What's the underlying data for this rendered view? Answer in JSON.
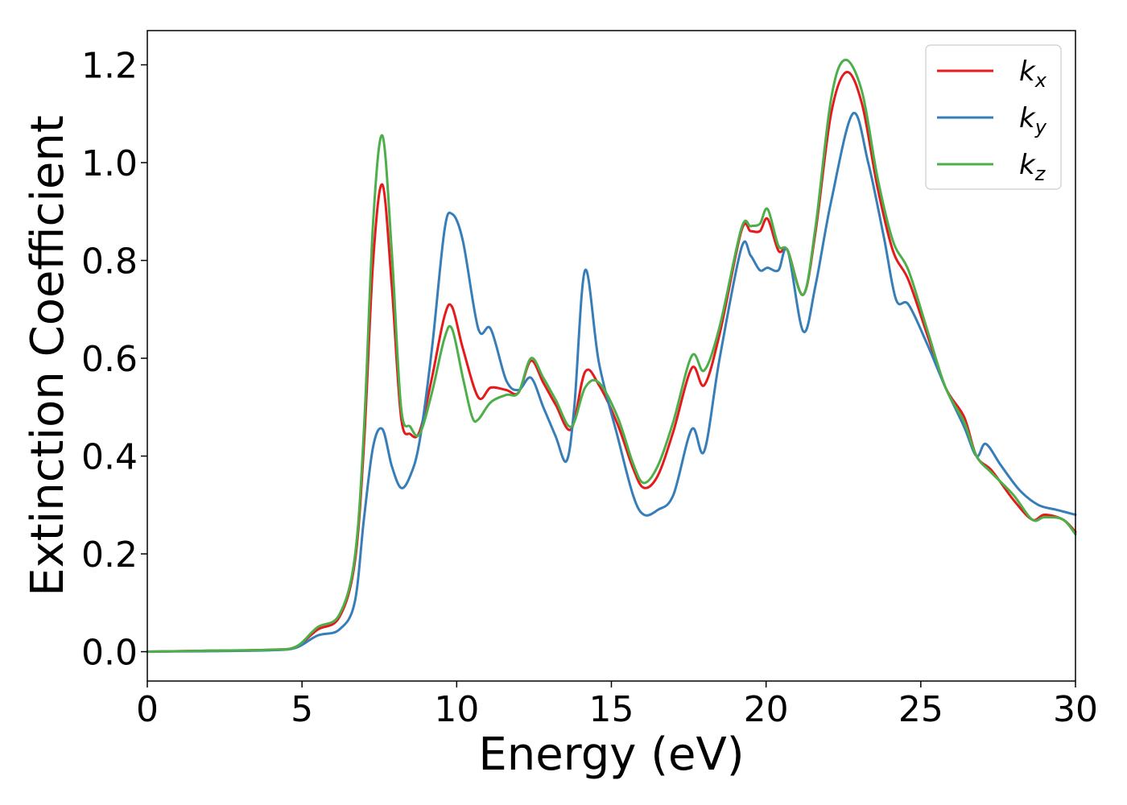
{
  "chart_data": {
    "type": "line",
    "xlabel": "Energy (eV)",
    "ylabel": "Extinction Coefficient",
    "xlim": [
      0,
      30
    ],
    "ylim": [
      -0.06,
      1.27
    ],
    "xticks": [
      0,
      5,
      10,
      15,
      20,
      25,
      30
    ],
    "xtick_labels": [
      "0",
      "5",
      "10",
      "15",
      "20",
      "25",
      "30"
    ],
    "yticks": [
      0.0,
      0.2,
      0.4,
      0.6,
      0.8,
      1.0,
      1.2
    ],
    "ytick_labels": [
      "0.0",
      "0.2",
      "0.4",
      "0.6",
      "0.8",
      "1.0",
      "1.2"
    ],
    "grid": false,
    "legend_position": "top-right",
    "series": [
      {
        "name": "k_x",
        "label_main": "k",
        "label_sub": "x",
        "color": "#e41a1c",
        "x": [
          0,
          2,
          4,
          4.8,
          5.5,
          6.2,
          6.7,
          7.0,
          7.3,
          7.6,
          7.9,
          8.2,
          8.5,
          8.8,
          9.2,
          9.6,
          9.85,
          10.2,
          10.7,
          11.1,
          11.6,
          12.0,
          12.4,
          12.8,
          13.2,
          13.7,
          14.15,
          14.6,
          15.2,
          15.7,
          16.05,
          16.5,
          17.0,
          17.6,
          18.0,
          18.5,
          19.2,
          19.5,
          19.8,
          20.05,
          20.4,
          20.7,
          21.2,
          21.6,
          22.1,
          22.6,
          23.1,
          23.6,
          24.1,
          24.6,
          25.2,
          25.8,
          26.4,
          26.8,
          27.3,
          28.0,
          28.6,
          29.0,
          29.6,
          30.0
        ],
        "y": [
          0.0,
          0.002,
          0.004,
          0.01,
          0.045,
          0.07,
          0.18,
          0.42,
          0.8,
          0.955,
          0.75,
          0.48,
          0.445,
          0.45,
          0.56,
          0.685,
          0.705,
          0.62,
          0.52,
          0.54,
          0.535,
          0.53,
          0.595,
          0.55,
          0.505,
          0.455,
          0.572,
          0.545,
          0.465,
          0.375,
          0.335,
          0.36,
          0.45,
          0.58,
          0.545,
          0.65,
          0.86,
          0.86,
          0.86,
          0.885,
          0.82,
          0.82,
          0.73,
          0.86,
          1.1,
          1.185,
          1.12,
          0.95,
          0.82,
          0.76,
          0.65,
          0.54,
          0.48,
          0.4,
          0.37,
          0.31,
          0.27,
          0.28,
          0.27,
          0.245
        ]
      },
      {
        "name": "k_y",
        "label_main": "k",
        "label_sub": "y",
        "color": "#377eb8",
        "x": [
          0,
          2,
          4,
          4.8,
          5.5,
          6.2,
          6.7,
          7.0,
          7.3,
          7.6,
          7.9,
          8.2,
          8.5,
          8.8,
          9.2,
          9.6,
          9.85,
          10.2,
          10.7,
          11.1,
          11.6,
          12.0,
          12.4,
          12.8,
          13.2,
          13.55,
          13.8,
          14.15,
          14.6,
          15.2,
          15.7,
          16.05,
          16.5,
          17.0,
          17.6,
          18.0,
          18.5,
          19.2,
          19.5,
          19.8,
          20.05,
          20.4,
          20.7,
          21.2,
          21.6,
          22.1,
          22.8,
          23.3,
          23.8,
          24.2,
          24.6,
          25.2,
          25.8,
          26.4,
          26.8,
          27.1,
          27.6,
          28.2,
          28.8,
          29.4,
          30.0
        ],
        "y": [
          0.0,
          0.001,
          0.003,
          0.008,
          0.033,
          0.045,
          0.1,
          0.27,
          0.42,
          0.455,
          0.38,
          0.335,
          0.36,
          0.43,
          0.62,
          0.86,
          0.895,
          0.84,
          0.66,
          0.66,
          0.555,
          0.535,
          0.56,
          0.5,
          0.44,
          0.39,
          0.5,
          0.78,
          0.59,
          0.44,
          0.32,
          0.28,
          0.29,
          0.32,
          0.455,
          0.41,
          0.6,
          0.825,
          0.81,
          0.78,
          0.785,
          0.78,
          0.82,
          0.655,
          0.75,
          0.92,
          1.1,
          1.0,
          0.85,
          0.72,
          0.71,
          0.63,
          0.54,
          0.46,
          0.4,
          0.425,
          0.38,
          0.33,
          0.3,
          0.29,
          0.28
        ]
      },
      {
        "name": "k_z",
        "label_main": "k",
        "label_sub": "z",
        "color": "#4daf4a",
        "x": [
          0,
          2,
          4,
          4.8,
          5.5,
          6.2,
          6.7,
          7.0,
          7.3,
          7.6,
          7.9,
          8.2,
          8.5,
          8.8,
          9.2,
          9.6,
          9.85,
          10.2,
          10.5,
          10.7,
          11.1,
          11.6,
          12.0,
          12.4,
          12.8,
          13.2,
          13.7,
          14.15,
          14.6,
          15.2,
          15.7,
          16.05,
          16.5,
          17.0,
          17.6,
          18.0,
          18.5,
          19.2,
          19.5,
          19.8,
          20.05,
          20.4,
          20.7,
          21.2,
          21.6,
          22.1,
          22.55,
          23.1,
          23.6,
          24.1,
          24.6,
          25.2,
          25.8,
          26.4,
          26.8,
          27.3,
          28.0,
          28.6,
          29.0,
          29.6,
          30.0
        ],
        "y": [
          0.0,
          0.002,
          0.004,
          0.01,
          0.05,
          0.075,
          0.19,
          0.45,
          0.88,
          1.055,
          0.82,
          0.5,
          0.46,
          0.445,
          0.53,
          0.64,
          0.66,
          0.56,
          0.48,
          0.475,
          0.51,
          0.525,
          0.53,
          0.6,
          0.56,
          0.515,
          0.46,
          0.54,
          0.55,
          0.48,
          0.385,
          0.345,
          0.38,
          0.47,
          0.605,
          0.575,
          0.665,
          0.865,
          0.87,
          0.875,
          0.905,
          0.83,
          0.82,
          0.73,
          0.87,
          1.13,
          1.21,
          1.145,
          0.97,
          0.84,
          0.78,
          0.66,
          0.54,
          0.47,
          0.4,
          0.365,
          0.32,
          0.27,
          0.275,
          0.27,
          0.24
        ]
      }
    ]
  }
}
